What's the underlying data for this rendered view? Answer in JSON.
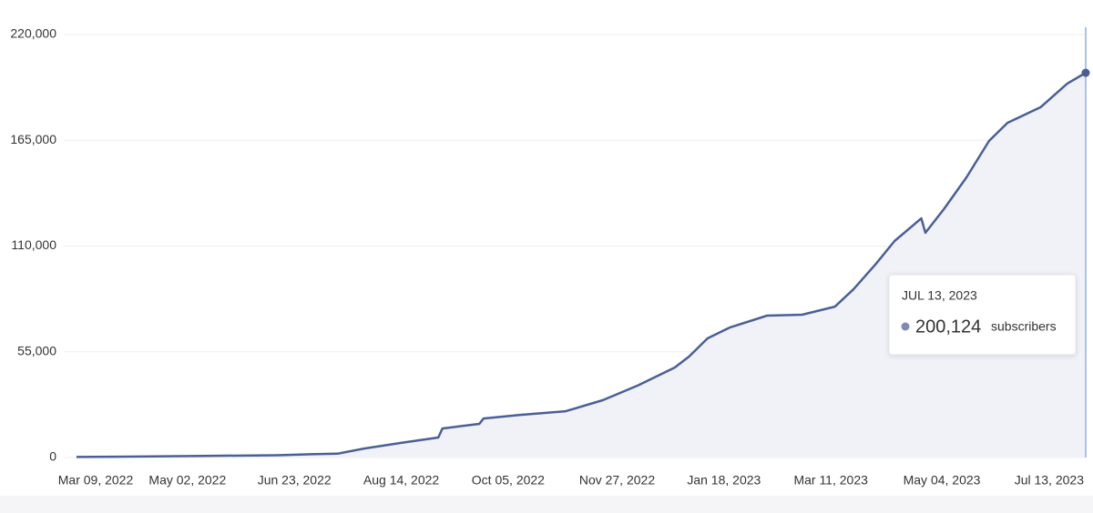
{
  "chart_data": {
    "type": "area",
    "series": [
      {
        "name": "subscribers",
        "color": "#4a5f94",
        "x": [
          "2022-03-09",
          "2022-04-10",
          "2022-05-15",
          "2022-06-15",
          "2022-07-01",
          "2022-07-14",
          "2022-07-27",
          "2022-08-14",
          "2022-09-01",
          "2022-09-03",
          "2022-09-21",
          "2022-09-23",
          "2022-10-11",
          "2022-11-02",
          "2022-11-20",
          "2022-12-07",
          "2022-12-25",
          "2023-01-01",
          "2023-01-10",
          "2023-01-21",
          "2023-02-08",
          "2023-02-25",
          "2023-03-13",
          "2023-03-22",
          "2023-04-02",
          "2023-04-11",
          "2023-04-24",
          "2023-04-26",
          "2023-05-05",
          "2023-05-16",
          "2023-05-27",
          "2023-06-05",
          "2023-06-21",
          "2023-07-04",
          "2023-07-13"
        ],
        "values": [
          300,
          500,
          900,
          1200,
          1700,
          2000,
          4700,
          7600,
          10400,
          15100,
          17500,
          20300,
          22200,
          24100,
          29800,
          37400,
          46800,
          52500,
          62000,
          67700,
          73800,
          74300,
          78500,
          87500,
          100800,
          112600,
          124400,
          116900,
          129200,
          145700,
          164700,
          174100,
          182200,
          194500,
          200124
        ]
      }
    ],
    "xlim": [
      "2022-03-09",
      "2023-07-13"
    ],
    "xticks": [
      {
        "value": "2022-03-09",
        "label": "Mar 09, 2022"
      },
      {
        "value": "2022-05-02",
        "label": "May 02, 2022"
      },
      {
        "value": "2022-06-23",
        "label": "Jun 23, 2022"
      },
      {
        "value": "2022-08-14",
        "label": "Aug 14, 2022"
      },
      {
        "value": "2022-10-05",
        "label": "Oct 05, 2022"
      },
      {
        "value": "2022-11-27",
        "label": "Nov 27, 2022"
      },
      {
        "value": "2023-01-18",
        "label": "Jan 18, 2023"
      },
      {
        "value": "2023-03-11",
        "label": "Mar 11, 2023"
      },
      {
        "value": "2023-05-04",
        "label": "May 04, 2023"
      },
      {
        "value": "2023-07-13",
        "label": "Jul 13, 2023"
      }
    ],
    "ylim": [
      0,
      220000
    ],
    "yticks": [
      {
        "value": 0,
        "label": "0"
      },
      {
        "value": 55000,
        "label": "55,000"
      },
      {
        "value": 110000,
        "label": "110,000"
      },
      {
        "value": 165000,
        "label": "165,000"
      },
      {
        "value": 220000,
        "label": "220,000"
      }
    ],
    "grid": true,
    "area_color": "#f1f2f7",
    "tooltip": {
      "title": "JUL 13, 2023",
      "value": 200124,
      "value_label": "200,124",
      "unit": "subscribers"
    }
  }
}
